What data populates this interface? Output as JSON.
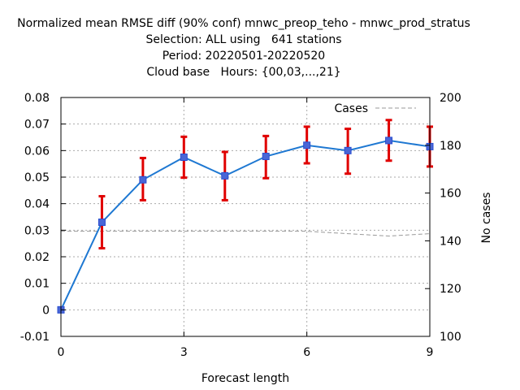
{
  "chart_data": {
    "type": "line",
    "title_lines": [
      "Normalized mean RMSE diff (90% conf) mnwc_preop_teho - mnwc_prod_stratus",
      "Selection: ALL using   641 stations",
      "Period: 20220501-20220520",
      "Cloud base   Hours: {00,03,...,21}"
    ],
    "xlabel": "Forecast length",
    "ylabel": "",
    "y2label": "No cases",
    "xlim": [
      0,
      9
    ],
    "ylim": [
      -0.01,
      0.08
    ],
    "y2lim": [
      100,
      200
    ],
    "x_ticks": [
      0,
      3,
      6,
      9
    ],
    "y_ticks": [
      "-0.01",
      "0",
      "0.01",
      "0.02",
      "0.03",
      "0.04",
      "0.05",
      "0.06",
      "0.07",
      "0.08"
    ],
    "y2_ticks": [
      "100",
      "120",
      "140",
      "160",
      "180",
      "200"
    ],
    "grid": true,
    "series": [
      {
        "name": "",
        "color": "#1e78d2",
        "marker_color": "#4a66d6",
        "x": [
          0,
          1,
          2,
          3,
          4,
          5,
          6,
          7,
          8,
          9
        ],
        "values": [
          0.0,
          0.033,
          0.049,
          0.0575,
          0.0505,
          0.0578,
          0.062,
          0.06,
          0.0638,
          0.0615
        ],
        "error_low": [
          0.0,
          0.0232,
          0.0413,
          0.0498,
          0.0413,
          0.0496,
          0.0552,
          0.0513,
          0.0562,
          0.054
        ],
        "error_high": [
          0.0,
          0.0428,
          0.0572,
          0.0652,
          0.0595,
          0.0655,
          0.069,
          0.0682,
          0.0715,
          0.069
        ],
        "error_color": "#e00000"
      },
      {
        "name": "Cases",
        "axis": "y2",
        "color": "#999999",
        "dashed": true,
        "x": [
          0,
          1,
          2,
          3,
          4,
          5,
          6,
          7,
          8,
          9
        ],
        "values": [
          144,
          144,
          144,
          144,
          144,
          144,
          144,
          143,
          142,
          143
        ]
      }
    ],
    "legend_placement": "top-right"
  }
}
